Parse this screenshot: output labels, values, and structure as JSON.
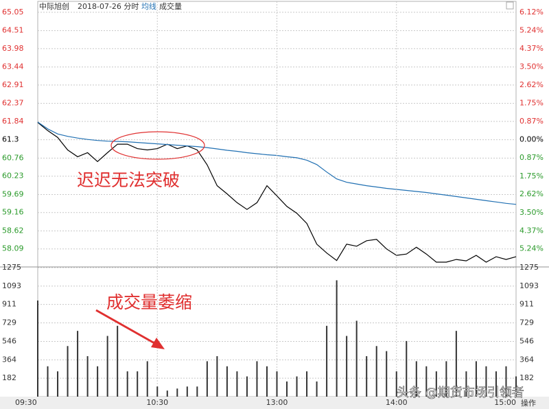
{
  "chart_data": [
    {
      "type": "line",
      "title": "中际旭创",
      "subtitle": "2018-07-26 分时",
      "categories": [
        null,
        null,
        null,
        null,
        null,
        null,
        null,
        null,
        null,
        null,
        null,
        null,
        null,
        null,
        null,
        null,
        null,
        null,
        null,
        null,
        null,
        null,
        null,
        null,
        null,
        null,
        null,
        null,
        null,
        null,
        null,
        null,
        null,
        null,
        null,
        null,
        null,
        null,
        null,
        null,
        null,
        null,
        null,
        null,
        null,
        null,
        null,
        null,
        null
      ],
      "series": [
        {
          "color": "#000000",
          "values": [
            61.81,
            61.57,
            61.37,
            61.0,
            60.8,
            60.92,
            60.66,
            60.92,
            61.17,
            61.17,
            61.04,
            61.0,
            61.04,
            61.17,
            61.04,
            61.12,
            61.0,
            60.56,
            59.95,
            59.71,
            59.45,
            59.25,
            59.45,
            59.95,
            59.65,
            59.34,
            59.14,
            58.84,
            58.23,
            57.97,
            57.75,
            58.23,
            58.17,
            58.33,
            58.37,
            58.09,
            57.9,
            57.94,
            58.14,
            57.94,
            57.7,
            57.7,
            57.78,
            57.74,
            57.9,
            57.7,
            57.86,
            57.78,
            57.86
          ]
        },
        {
          "name": "均线",
          "color": "#1f6fb2",
          "values": [
            61.82,
            61.62,
            61.47,
            61.4,
            61.35,
            61.31,
            61.28,
            61.26,
            61.25,
            61.24,
            61.22,
            61.2,
            61.18,
            61.16,
            61.14,
            61.12,
            61.1,
            61.07,
            61.03,
            60.99,
            60.96,
            60.92,
            60.89,
            60.86,
            60.84,
            60.8,
            60.77,
            60.7,
            60.57,
            60.35,
            60.15,
            60.05,
            60.0,
            59.95,
            59.91,
            59.87,
            59.84,
            59.81,
            59.78,
            59.75,
            59.71,
            59.67,
            59.63,
            59.59,
            59.55,
            59.51,
            59.47,
            59.43,
            59.4
          ]
        }
      ],
      "ylim": [
        57.6,
        65.35
      ],
      "yticks": [
        65.05,
        64.51,
        63.98,
        63.44,
        62.91,
        62.37,
        61.84,
        61.3,
        60.76,
        60.23,
        59.69,
        59.16,
        58.62,
        58.09
      ],
      "y2lim": [
        -6.04,
        6.61
      ],
      "y2ticks": [
        {
          "value": 6.12,
          "label": "6.12%"
        },
        {
          "value": 5.24,
          "label": "5.24%"
        },
        {
          "value": 4.37,
          "label": "4.37%"
        },
        {
          "value": 3.5,
          "label": "3.50%"
        },
        {
          "value": 2.62,
          "label": "2.62%"
        },
        {
          "value": 1.75,
          "label": "1.75%"
        },
        {
          "value": 0.87,
          "label": "0.87%"
        },
        {
          "value": 0.0,
          "label": "0.00%"
        },
        {
          "value": -0.87,
          "label": "0.87%"
        },
        {
          "value": -1.75,
          "label": "1.75%"
        },
        {
          "value": -2.62,
          "label": "2.62%"
        },
        {
          "value": -3.5,
          "label": "3.50%"
        },
        {
          "value": -4.37,
          "label": "4.37%"
        },
        {
          "value": -5.24,
          "label": "5.24%"
        }
      ],
      "up_color": "#e03030",
      "down_color": "#2a9a2a",
      "flat_color": "#000000",
      "annotations": [
        "迟迟无法突破"
      ],
      "grid": true
    },
    {
      "type": "bar",
      "categories": [
        "09:30",
        null,
        null,
        null,
        null,
        null,
        null,
        null,
        null,
        null,
        null,
        null,
        "10:30",
        null,
        null,
        null,
        null,
        null,
        null,
        null,
        null,
        null,
        null,
        null,
        "13:00",
        null,
        null,
        null,
        null,
        null,
        null,
        null,
        null,
        null,
        null,
        null,
        "14:00",
        null,
        null,
        null,
        null,
        null,
        null,
        null,
        null,
        null,
        null,
        null,
        "15:00"
      ],
      "series": [
        {
          "name": "成交量",
          "color": "#333333",
          "values": [
            950,
            300,
            250,
            500,
            650,
            400,
            300,
            600,
            700,
            250,
            250,
            350,
            100,
            60,
            80,
            100,
            100,
            350,
            400,
            300,
            250,
            200,
            350,
            300,
            250,
            150,
            200,
            250,
            150,
            700,
            1150,
            600,
            750,
            400,
            500,
            450,
            250,
            550,
            350,
            300,
            250,
            350,
            650,
            250,
            350,
            300,
            250,
            300,
            200
          ]
        }
      ],
      "ylim": [
        0,
        1275
      ],
      "yticks": [
        182,
        364,
        546,
        729,
        911,
        1093,
        1275
      ],
      "annotations": [
        "成交量萎缩"
      ],
      "grid": true
    }
  ],
  "watermark": "头条 @期货市场引领者",
  "footer_button": "操作"
}
